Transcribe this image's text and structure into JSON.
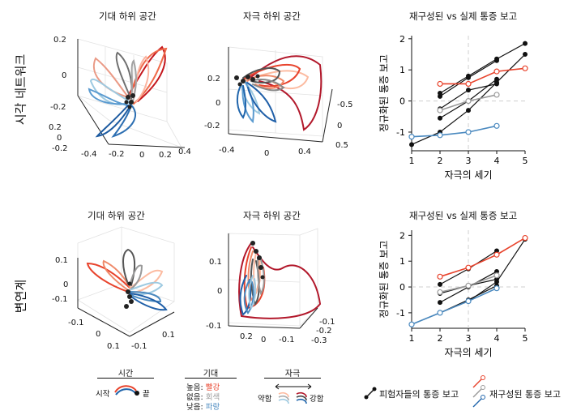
{
  "row_labels": {
    "top": "시각 네트워크",
    "bottom": "변연계"
  },
  "panel_titles": {
    "top_expect": "기대 하위 공간",
    "top_stim": "자극 하위 공간",
    "top_chart": "재구성된 vs 실제 통증 보고",
    "bot_expect": "기대 하위 공간",
    "bot_stim": "자극 하위 공간",
    "bot_chart": "재구성된 vs 실제 통증 보고"
  },
  "axis_ticks_3d": {
    "top_expect_z": [
      "0.2",
      "0",
      "-0.2"
    ],
    "top_expect_y": [
      "0.2",
      "0",
      "-0.2"
    ],
    "top_expect_x": [
      "-0.4",
      "-0.2",
      "0",
      "0.2",
      "0.4"
    ],
    "top_stim_z": [
      "0.2",
      "0",
      "-0.2"
    ],
    "top_stim_x": [
      "-0.4",
      "0",
      "0.4"
    ],
    "top_stim_y": [
      "-0.5",
      "0",
      "0.5"
    ],
    "bot_expect_z": [
      "0.1",
      "0",
      "-0.1"
    ],
    "bot_expect_x": [
      "-0.1",
      "0",
      "0.1"
    ],
    "bot_expect_y": [
      "0.1",
      "-0.1"
    ],
    "bot_stim_z": [
      "0.1",
      "0",
      "-0.1"
    ],
    "bot_stim_x": [
      "0.2",
      "0",
      "-0.1"
    ],
    "bot_stim_y": [
      "-0.1",
      "-0.2",
      "-0.3"
    ]
  },
  "legend": {
    "time_header": "시간",
    "time_start": "시작",
    "time_end": "끝",
    "expect_header": "기대",
    "expect_high_prefix": "높음: ",
    "expect_high_color": "빨강",
    "expect_none_prefix": "없음: ",
    "expect_none_color": "회색",
    "expect_low_prefix": "낮음: ",
    "expect_low_color": "파랑",
    "stim_header": "자극",
    "stim_weak": "약함",
    "stim_strong": "강함",
    "actual_label": "피험자들의 통증 보고",
    "recon_label": "재구성된 통증 보고"
  },
  "colors": {
    "red": "#e8432c",
    "gray": "#9a9a9a",
    "blue": "#4a89bf",
    "black": "#111111",
    "darkred": "#b2182b",
    "darkblue": "#2166ac"
  },
  "chart_data": [
    {
      "type": "line",
      "title": "재구성된 vs 실제 통증 보고",
      "xlabel": "자극의 세기",
      "ylabel": "정규화된 통증 보고",
      "xlim": [
        1,
        5
      ],
      "ylim": [
        -1.6,
        2.1
      ],
      "xticks": [
        "1",
        "2",
        "3",
        "4",
        "5"
      ],
      "yticks": [
        "2",
        "1",
        "0",
        "-1"
      ],
      "grid": "dashed lines at x=3 and y=0",
      "series": [
        {
          "group": "actual",
          "x": [
            1,
            2,
            3,
            4,
            5
          ],
          "y": [
            -1.4,
            -1.0,
            -0.3,
            0.6,
            1.5
          ],
          "color": "#111111"
        },
        {
          "group": "actual",
          "x": [
            2,
            3,
            4
          ],
          "y": [
            -0.55,
            0.0,
            0.7
          ],
          "color": "#111111"
        },
        {
          "group": "actual",
          "x": [
            2,
            3,
            4
          ],
          "y": [
            0.15,
            0.75,
            1.3
          ],
          "color": "#111111"
        },
        {
          "group": "actual",
          "x": [
            2,
            3,
            4,
            5
          ],
          "y": [
            0.25,
            0.8,
            1.35,
            1.85
          ],
          "color": "#111111"
        },
        {
          "group": "actual",
          "x": [
            2,
            3,
            4
          ],
          "y": [
            -0.25,
            0.35,
            0.55
          ],
          "color": "#111111"
        },
        {
          "group": "reconstructed",
          "x": [
            2,
            3,
            4,
            5
          ],
          "y": [
            0.55,
            0.55,
            0.95,
            1.05
          ],
          "color": "#e8432c"
        },
        {
          "group": "reconstructed",
          "x": [
            2,
            3,
            4
          ],
          "y": [
            -0.3,
            0.0,
            0.2
          ],
          "color": "#9a9a9a"
        },
        {
          "group": "reconstructed",
          "x": [
            1,
            2,
            3,
            4
          ],
          "y": [
            -1.15,
            -1.1,
            -1.0,
            -0.8
          ],
          "color": "#4a89bf"
        }
      ]
    },
    {
      "type": "line",
      "title": "재구성된 vs 실제 통증 보고",
      "xlabel": "자극의 세기",
      "ylabel": "정규화된 통증 보고",
      "xlim": [
        1,
        5
      ],
      "ylim": [
        -1.6,
        2.2
      ],
      "xticks": [
        "1",
        "2",
        "3",
        "4",
        "5"
      ],
      "yticks": [
        "2",
        "1",
        "0",
        "-1"
      ],
      "grid": "dashed lines at x=3 and y=0",
      "series": [
        {
          "group": "actual",
          "x": [
            1,
            2,
            3,
            4,
            5
          ],
          "y": [
            -1.45,
            -1.0,
            -0.55,
            0.2,
            1.85
          ],
          "color": "#111111"
        },
        {
          "group": "actual",
          "x": [
            2,
            3,
            4
          ],
          "y": [
            0.1,
            0.7,
            1.4
          ],
          "color": "#111111"
        },
        {
          "group": "actual",
          "x": [
            2,
            3,
            4
          ],
          "y": [
            -0.25,
            0.05,
            0.3
          ],
          "color": "#111111"
        },
        {
          "group": "actual",
          "x": [
            2,
            3,
            4
          ],
          "y": [
            -0.6,
            0.0,
            0.6
          ],
          "color": "#111111"
        },
        {
          "group": "actual",
          "x": [
            2,
            3,
            4
          ],
          "y": [
            -1.0,
            -0.5,
            0.05
          ],
          "color": "#111111"
        },
        {
          "group": "reconstructed",
          "x": [
            2,
            3,
            4,
            5
          ],
          "y": [
            0.4,
            0.75,
            1.25,
            1.9
          ],
          "color": "#e8432c"
        },
        {
          "group": "reconstructed",
          "x": [
            2,
            3,
            4
          ],
          "y": [
            -0.2,
            0.05,
            0.45
          ],
          "color": "#9a9a9a"
        },
        {
          "group": "reconstructed",
          "x": [
            1,
            2,
            3,
            4
          ],
          "y": [
            -1.45,
            -1.0,
            -0.55,
            -0.05
          ],
          "color": "#4a89bf"
        }
      ]
    }
  ]
}
